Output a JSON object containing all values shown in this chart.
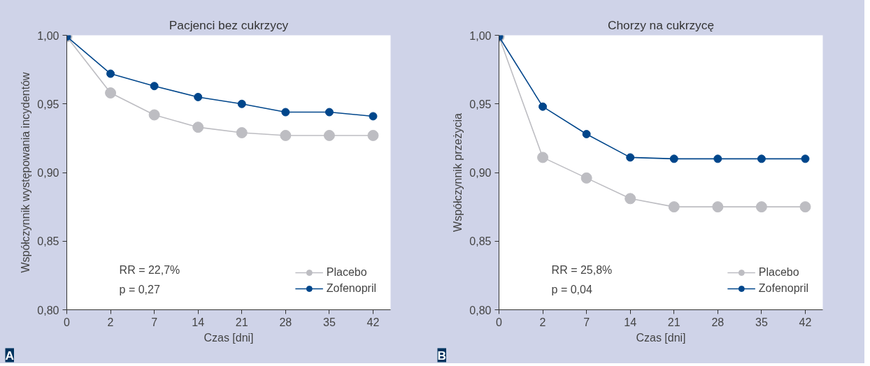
{
  "chart_data": [
    {
      "type": "line",
      "title": "Pacjenci bez cukrzycy",
      "xlabel": "Czas [dni]",
      "ylabel": "Współczynnik występowania incydentów",
      "categories": [
        "0",
        "2",
        "7",
        "14",
        "21",
        "28",
        "35",
        "42"
      ],
      "ylim": [
        0.8,
        1.0
      ],
      "yticks": [
        {
          "value": 0.8,
          "label": "0,80"
        },
        {
          "value": 0.85,
          "label": "0,85"
        },
        {
          "value": 0.9,
          "label": "0,90"
        },
        {
          "value": 0.95,
          "label": "0,95"
        },
        {
          "value": 1.0,
          "label": "1,00"
        }
      ],
      "marker": "circle",
      "line_style": "solid",
      "grid": false,
      "legend": "bottom right",
      "series": [
        {
          "name": "Placebo",
          "color": "#bdbdc2",
          "values": [
            0.999,
            0.958,
            0.942,
            0.933,
            0.929,
            0.927,
            0.927,
            0.927
          ]
        },
        {
          "name": "Zofenopril",
          "color": "#00468b",
          "values": [
            0.999,
            0.972,
            0.963,
            0.955,
            0.95,
            0.944,
            0.944,
            0.941
          ]
        }
      ],
      "annotations": [
        "RR = 22,7%",
        "p = 0,27",
        "A"
      ]
    },
    {
      "type": "line",
      "title": "Chorzy na cukrzycę",
      "xlabel": "Czas [dni]",
      "ylabel": "Współczynnik przeżycia",
      "categories": [
        "0",
        "2",
        "7",
        "14",
        "21",
        "28",
        "35",
        "42"
      ],
      "ylim": [
        0.8,
        1.0
      ],
      "yticks": [
        {
          "value": 0.8,
          "label": "0,80"
        },
        {
          "value": 0.85,
          "label": "0,85"
        },
        {
          "value": 0.9,
          "label": "0,90"
        },
        {
          "value": 0.95,
          "label": "0,95"
        },
        {
          "value": 1.0,
          "label": "1,00"
        }
      ],
      "marker": "circle",
      "line_style": "solid",
      "grid": false,
      "legend": "bottom right",
      "series": [
        {
          "name": "Placebo",
          "color": "#bdbdc2",
          "values": [
            0.999,
            0.911,
            0.896,
            0.881,
            0.875,
            0.875,
            0.875,
            0.875
          ]
        },
        {
          "name": "Zofenopril",
          "color": "#00468b",
          "values": [
            0.999,
            0.948,
            0.928,
            0.911,
            0.91,
            0.91,
            0.91,
            0.91
          ]
        }
      ],
      "annotations": [
        "RR = 25,8%",
        "p = 0,04",
        "B"
      ]
    }
  ]
}
